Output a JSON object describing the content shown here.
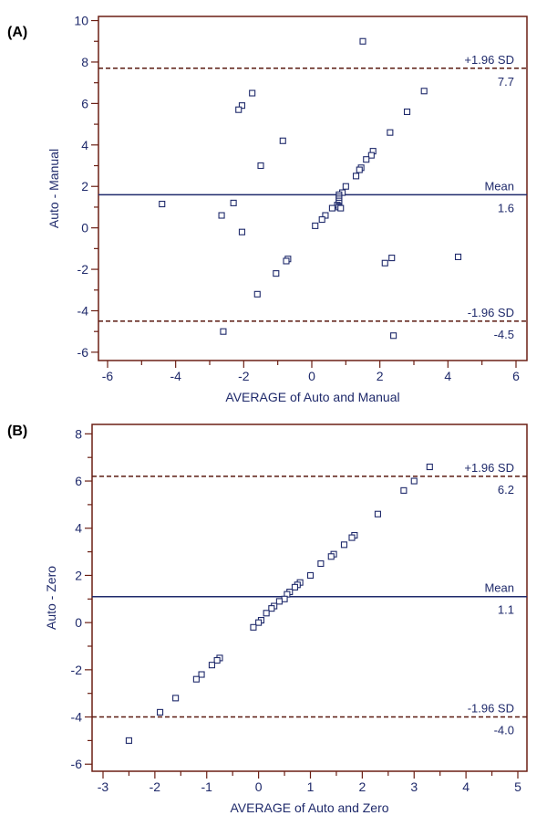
{
  "chart_data": [
    {
      "panel_label": "(A)",
      "type": "scatter",
      "xlabel": "AVERAGE of Auto and Manual",
      "ylabel": "Auto - Manual",
      "xlim": [
        -6,
        6
      ],
      "ylim": [
        -6.4,
        10.2
      ],
      "xticks": [
        -6,
        -4,
        -2,
        0,
        2,
        4,
        6
      ],
      "yticks": [
        -6,
        -4,
        -2,
        0,
        2,
        4,
        6,
        8,
        10
      ],
      "lines": {
        "upper": {
          "label": "+1.96 SD",
          "value": 7.7,
          "value_label": "7.7"
        },
        "mean": {
          "label": "Mean",
          "value": 1.6,
          "value_label": "1.6"
        },
        "lower": {
          "label": "-1.96 SD",
          "value": -4.5,
          "value_label": "-4.5"
        }
      },
      "points": [
        [
          1.5,
          9.0
        ],
        [
          3.3,
          6.6
        ],
        [
          2.8,
          5.6
        ],
        [
          2.3,
          4.6
        ],
        [
          1.8,
          3.7
        ],
        [
          1.75,
          3.5
        ],
        [
          1.6,
          3.3
        ],
        [
          1.45,
          2.9
        ],
        [
          1.4,
          2.8
        ],
        [
          1.3,
          2.5
        ],
        [
          1.0,
          2.0
        ],
        [
          0.9,
          1.7
        ],
        [
          0.8,
          1.6
        ],
        [
          0.8,
          1.5
        ],
        [
          0.8,
          1.4
        ],
        [
          0.8,
          1.3
        ],
        [
          0.8,
          1.2
        ],
        [
          0.75,
          1.1
        ],
        [
          0.8,
          1.05
        ],
        [
          0.8,
          1.0
        ],
        [
          0.85,
          0.95
        ],
        [
          0.6,
          0.95
        ],
        [
          0.4,
          0.6
        ],
        [
          0.3,
          0.4
        ],
        [
          0.1,
          0.1
        ],
        [
          -1.75,
          6.5
        ],
        [
          -2.05,
          5.9
        ],
        [
          -2.15,
          5.7
        ],
        [
          -0.85,
          4.2
        ],
        [
          -1.5,
          3.0
        ],
        [
          -2.65,
          0.6
        ],
        [
          -2.3,
          1.2
        ],
        [
          -4.4,
          1.15
        ],
        [
          -2.05,
          -0.2
        ],
        [
          -0.7,
          -1.5
        ],
        [
          -0.75,
          -1.6
        ],
        [
          -1.05,
          -2.2
        ],
        [
          -1.6,
          -3.2
        ],
        [
          -2.6,
          -5.0
        ],
        [
          2.15,
          -1.7
        ],
        [
          2.35,
          -1.45
        ],
        [
          4.3,
          -1.4
        ],
        [
          2.4,
          -5.2
        ]
      ]
    },
    {
      "panel_label": "(B)",
      "type": "scatter",
      "xlabel": "AVERAGE of Auto and Zero",
      "ylabel": "Auto - Zero",
      "xlim": [
        -3,
        5
      ],
      "ylim": [
        -6.3,
        8.4
      ],
      "xticks": [
        -3,
        -2,
        -1,
        0,
        1,
        2,
        3,
        4,
        5
      ],
      "yticks": [
        -6,
        -4,
        -2,
        0,
        2,
        4,
        6,
        8
      ],
      "lines": {
        "upper": {
          "label": "+1.96 SD",
          "value": 6.2,
          "value_label": "6.2"
        },
        "mean": {
          "label": "Mean",
          "value": 1.1,
          "value_label": "1.1"
        },
        "lower": {
          "label": "-1.96 SD",
          "value": -4.0,
          "value_label": "-4.0"
        }
      },
      "points": [
        [
          3.3,
          6.6
        ],
        [
          3.0,
          6.0
        ],
        [
          2.8,
          5.6
        ],
        [
          2.3,
          4.6
        ],
        [
          1.85,
          3.7
        ],
        [
          1.8,
          3.6
        ],
        [
          1.65,
          3.3
        ],
        [
          1.45,
          2.9
        ],
        [
          1.4,
          2.8
        ],
        [
          1.2,
          2.5
        ],
        [
          1.0,
          2.0
        ],
        [
          0.8,
          1.7
        ],
        [
          0.75,
          1.6
        ],
        [
          0.7,
          1.5
        ],
        [
          0.6,
          1.3
        ],
        [
          0.55,
          1.2
        ],
        [
          0.5,
          1.0
        ],
        [
          0.4,
          0.9
        ],
        [
          0.3,
          0.7
        ],
        [
          0.25,
          0.6
        ],
        [
          0.15,
          0.4
        ],
        [
          0.05,
          0.1
        ],
        [
          0.0,
          0.0
        ],
        [
          -0.1,
          -0.2
        ],
        [
          -0.75,
          -1.5
        ],
        [
          -0.8,
          -1.6
        ],
        [
          -0.9,
          -1.8
        ],
        [
          -1.1,
          -2.2
        ],
        [
          -1.2,
          -2.4
        ],
        [
          -1.6,
          -3.2
        ],
        [
          -1.9,
          -3.8
        ],
        [
          -2.5,
          -5.0
        ]
      ]
    }
  ]
}
